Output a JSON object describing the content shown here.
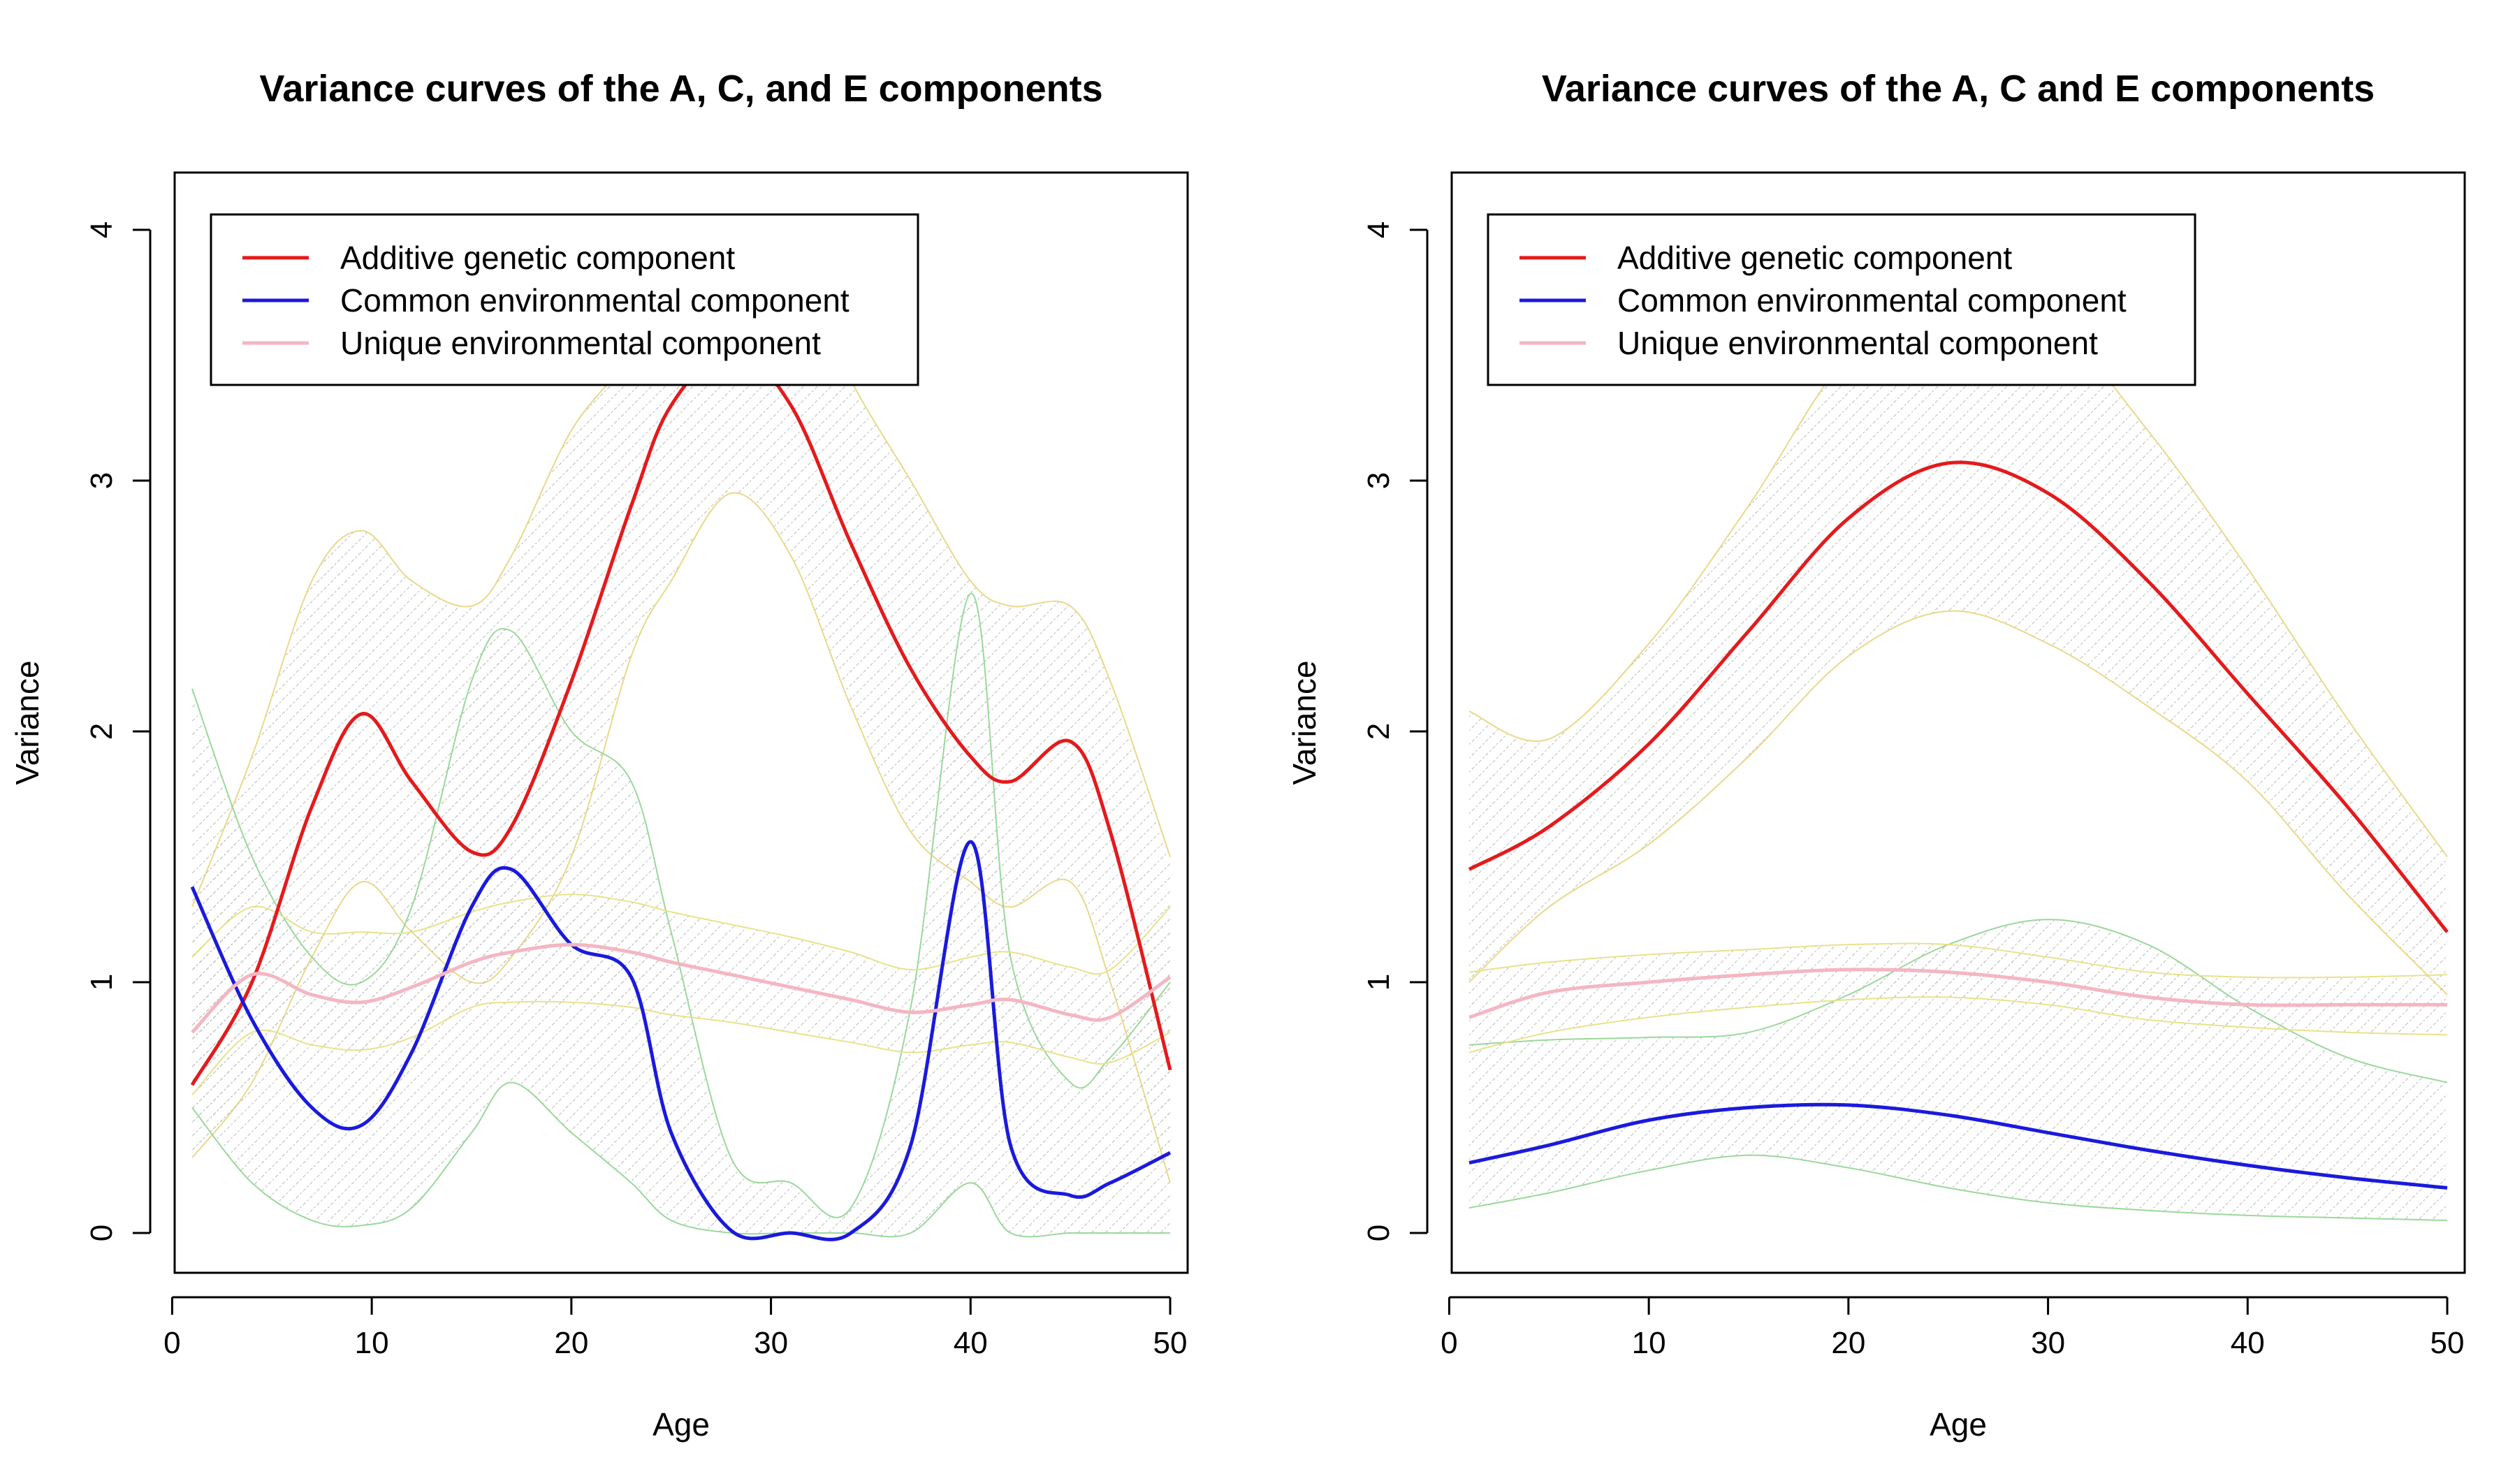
{
  "chart_data": [
    {
      "type": "line",
      "title": "Variance curves of the A, C, and E components",
      "xlabel": "Age",
      "ylabel": "Variance",
      "xlim": [
        0,
        50
      ],
      "ylim": [
        0,
        4.2
      ],
      "xticks": [
        "0",
        "10",
        "20",
        "30",
        "40",
        "50"
      ],
      "yticks": [
        "0",
        "1",
        "2",
        "3",
        "4"
      ],
      "legend": "top-left",
      "grid": false,
      "x": [
        1,
        4,
        7,
        9.5,
        12,
        15,
        17,
        20,
        23,
        25,
        28,
        31,
        34,
        37,
        40,
        42,
        45,
        47,
        50
      ],
      "series": [
        {
          "name": "Additive genetic component",
          "color": "#e41a1c",
          "values": [
            0.59,
            1.0,
            1.7,
            2.07,
            1.8,
            1.52,
            1.62,
            2.2,
            2.9,
            3.3,
            3.52,
            3.3,
            2.75,
            2.25,
            1.9,
            1.8,
            1.96,
            1.6,
            0.65
          ],
          "band_color": "#e8d98a",
          "lower": [
            0.3,
            0.6,
            1.1,
            1.4,
            1.2,
            1.0,
            1.1,
            1.5,
            2.3,
            2.6,
            2.95,
            2.7,
            2.1,
            1.6,
            1.4,
            1.3,
            1.4,
            1.0,
            0.2
          ],
          "upper": [
            1.3,
            1.9,
            2.6,
            2.8,
            2.6,
            2.5,
            2.7,
            3.2,
            3.5,
            3.8,
            4.0,
            3.9,
            3.4,
            3.0,
            2.6,
            2.5,
            2.5,
            2.2,
            1.5
          ]
        },
        {
          "name": "Common environmental component",
          "color": "#1a1adc",
          "values": [
            1.38,
            0.85,
            0.5,
            0.43,
            0.72,
            1.3,
            1.45,
            1.15,
            1.02,
            0.4,
            0.01,
            0.0,
            0.0,
            0.35,
            1.56,
            0.35,
            0.15,
            0.2,
            0.32
          ],
          "band_color": "#9ad89a",
          "lower": [
            0.5,
            0.2,
            0.05,
            0.03,
            0.1,
            0.4,
            0.6,
            0.4,
            0.2,
            0.05,
            0.0,
            0.0,
            0.0,
            0.0,
            0.2,
            0.0,
            0.0,
            0.0,
            0.0
          ],
          "upper": [
            2.17,
            1.5,
            1.1,
            1.0,
            1.3,
            2.2,
            2.4,
            2.0,
            1.8,
            1.2,
            0.3,
            0.2,
            0.1,
            0.9,
            2.55,
            1.1,
            0.6,
            0.7,
            1.0
          ]
        },
        {
          "name": "Unique environmental component",
          "color": "#f4b6c2",
          "values": [
            0.8,
            1.03,
            0.95,
            0.92,
            0.98,
            1.08,
            1.12,
            1.15,
            1.12,
            1.08,
            1.03,
            0.98,
            0.93,
            0.88,
            0.91,
            0.93,
            0.87,
            0.86,
            1.02
          ],
          "band_color": "#e8e28a",
          "lower": [
            0.55,
            0.8,
            0.75,
            0.73,
            0.78,
            0.9,
            0.92,
            0.92,
            0.9,
            0.87,
            0.84,
            0.8,
            0.76,
            0.72,
            0.75,
            0.76,
            0.7,
            0.68,
            0.8
          ],
          "upper": [
            1.1,
            1.3,
            1.2,
            1.2,
            1.2,
            1.28,
            1.32,
            1.35,
            1.32,
            1.28,
            1.23,
            1.18,
            1.12,
            1.05,
            1.1,
            1.12,
            1.06,
            1.05,
            1.3
          ]
        }
      ]
    },
    {
      "type": "line",
      "title": "Variance curves of the A, C and E components",
      "xlabel": "Age",
      "ylabel": "Variance",
      "xlim": [
        0,
        50
      ],
      "ylim": [
        0,
        4.2
      ],
      "xticks": [
        "0",
        "10",
        "20",
        "30",
        "40",
        "50"
      ],
      "yticks": [
        "0",
        "1",
        "2",
        "3",
        "4"
      ],
      "legend": "top-left",
      "grid": false,
      "x": [
        1,
        5,
        10,
        15,
        20,
        25,
        30,
        35,
        40,
        45,
        50
      ],
      "series": [
        {
          "name": "Additive genetic component",
          "color": "#e41a1c",
          "values": [
            1.45,
            1.62,
            1.95,
            2.4,
            2.85,
            3.07,
            2.95,
            2.6,
            2.15,
            1.7,
            1.2
          ],
          "band_color": "#e8d98a",
          "lower": [
            1.0,
            1.3,
            1.55,
            1.9,
            2.3,
            2.48,
            2.35,
            2.1,
            1.8,
            1.35,
            0.95
          ],
          "upper": [
            2.08,
            1.97,
            2.35,
            2.9,
            3.5,
            3.75,
            3.65,
            3.2,
            2.65,
            2.05,
            1.5
          ]
        },
        {
          "name": "Common environmental component",
          "color": "#1a1adc",
          "values": [
            0.28,
            0.35,
            0.45,
            0.5,
            0.51,
            0.47,
            0.4,
            0.33,
            0.27,
            0.22,
            0.18
          ],
          "band_color": "#9ad89a",
          "lower": [
            0.1,
            0.16,
            0.25,
            0.31,
            0.26,
            0.18,
            0.12,
            0.09,
            0.07,
            0.06,
            0.05
          ],
          "upper": [
            0.75,
            0.77,
            0.78,
            0.8,
            0.95,
            1.15,
            1.25,
            1.15,
            0.9,
            0.7,
            0.6
          ]
        },
        {
          "name": "Unique environmental component",
          "color": "#f4b6c2",
          "values": [
            0.86,
            0.96,
            1.0,
            1.03,
            1.05,
            1.04,
            1.0,
            0.94,
            0.91,
            0.91,
            0.91
          ],
          "band_color": "#e8e28a",
          "lower": [
            0.72,
            0.8,
            0.86,
            0.9,
            0.93,
            0.94,
            0.91,
            0.85,
            0.82,
            0.8,
            0.79
          ],
          "upper": [
            1.04,
            1.08,
            1.11,
            1.13,
            1.15,
            1.15,
            1.1,
            1.04,
            1.02,
            1.02,
            1.03
          ]
        }
      ]
    }
  ]
}
